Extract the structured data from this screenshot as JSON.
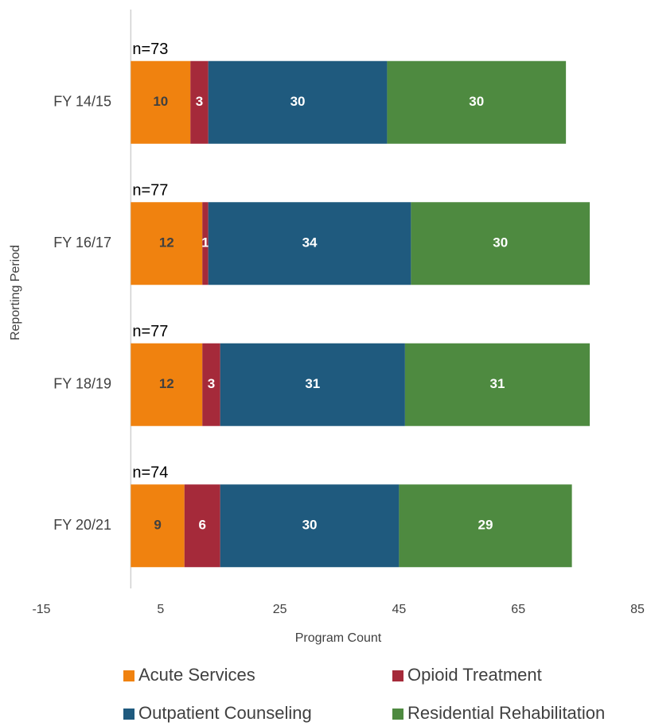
{
  "chart_data": {
    "type": "bar",
    "orientation": "horizontal",
    "stacked": true,
    "y_axis_label": "Reporting Period",
    "x_axis_label": "Program Count",
    "categories": [
      "FY 14/15",
      "FY 16/17",
      "FY 18/19",
      "FY 20/21"
    ],
    "annotations": [
      "n=73",
      "n=77",
      "n=77",
      "n=74"
    ],
    "series": [
      {
        "name": "Acute Services",
        "color": "#F0820F",
        "label_color": "#404040",
        "values": [
          10,
          12,
          12,
          9
        ]
      },
      {
        "name": "Opioid Treatment",
        "color": "#A52A3A",
        "label_color": "#ffffff",
        "values": [
          3,
          1,
          3,
          6
        ]
      },
      {
        "name": "Outpatient Counseling",
        "color": "#1F5A7E",
        "label_color": "#ffffff",
        "values": [
          30,
          34,
          31,
          30
        ]
      },
      {
        "name": "Residential Rehabilitation",
        "color": "#4E8A40",
        "label_color": "#ffffff",
        "values": [
          30,
          30,
          31,
          29
        ]
      }
    ],
    "xlim": [
      -15,
      85
    ],
    "xticks": [
      -15,
      5,
      25,
      45,
      65,
      85
    ],
    "legend": "bottom"
  }
}
